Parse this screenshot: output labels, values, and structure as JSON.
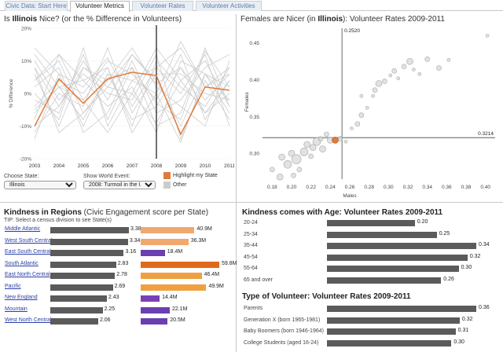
{
  "tabs": [
    {
      "label": "Civic Data: Start Here",
      "active": false
    },
    {
      "label": "Volunteer Metrics",
      "active": true
    },
    {
      "label": "Volunteer Rates",
      "active": false
    },
    {
      "label": "Volunteer Activities",
      "active": false
    }
  ],
  "line_panel": {
    "title_pre": "Is ",
    "title_state": "Illinois",
    "title_post": " Nice? (or the % Difference in Volunteers)",
    "ylabel": "% Difference",
    "event_year": "2008"
  },
  "controls": {
    "state_label": "Choose State:",
    "state_value": "Illinois",
    "event_label": "Show World Event:",
    "event_value": "2008: Turmoil in the US a"
  },
  "legend": {
    "highlight_label": "Highlight my State",
    "highlight_color": "#e07b39",
    "other_label": "Other",
    "other_color": "#cccccc"
  },
  "scatter_panel": {
    "title_pre": "Females are Nicer (in ",
    "title_state": "Illinois",
    "title_post": "):  Volunteer Rates 2009-2011",
    "xlabel": "Males",
    "ylabel": "Females",
    "ref_x_label": "0.2520",
    "ref_y_label": "0.3214"
  },
  "regions_panel": {
    "title_bold": "Kindness in Regions",
    "title_rest": " (Civic Engagement score per State)",
    "tip": "TIP: Select a census division to see State(s)"
  },
  "age_panel": {
    "title": "Kindness comes with Age:  Volunteer Rates 2009-2011"
  },
  "type_panel": {
    "title": "Type of Volunteer:  Volunteer Rates 2009-2011"
  },
  "chart_data": [
    {
      "type": "line",
      "x": [
        "2003",
        "2004",
        "2005",
        "2006",
        "2007",
        "2008",
        "2009",
        "2010",
        "2011"
      ],
      "ylim": [
        -20,
        20
      ],
      "yticks": [
        "20%",
        "10%",
        "0%",
        "-10%",
        "-20%"
      ],
      "highlight_color": "#e07b39",
      "other_color": "#cccccc",
      "series": [
        {
          "values": [
            -10,
            4.5,
            -3,
            4.5,
            6.5,
            5.5,
            -12.5,
            2,
            1
          ]
        }
      ],
      "other_series": [
        [
          -5,
          2,
          -8,
          6,
          4,
          0,
          -15,
          6,
          -2
        ],
        [
          8,
          -4,
          10,
          -2,
          12,
          3,
          8,
          -6,
          4
        ],
        [
          -14,
          6,
          2,
          11,
          -4,
          8,
          14,
          2,
          6
        ],
        [
          4,
          10,
          -6,
          2,
          0,
          -9,
          4,
          10,
          -4
        ],
        [
          -2,
          -6,
          12,
          -8,
          8,
          -3,
          -8,
          13,
          2
        ],
        [
          12,
          2,
          -2,
          8,
          -10,
          10,
          2,
          -4,
          8
        ],
        [
          -8,
          12,
          4,
          -4,
          2,
          -12,
          10,
          6,
          -6
        ],
        [
          6,
          -10,
          8,
          4,
          14,
          2,
          -4,
          -10,
          10
        ],
        [
          -12,
          0,
          -4,
          14,
          -6,
          6,
          6,
          0,
          -2
        ],
        [
          2,
          8,
          -12,
          -6,
          10,
          -6,
          -2,
          8,
          12
        ],
        [
          10,
          -2,
          6,
          0,
          -2,
          12,
          -14,
          4,
          -8
        ],
        [
          -4,
          4,
          0,
          10,
          6,
          -2,
          12,
          -8,
          4
        ],
        [
          0,
          -8,
          14,
          -10,
          4,
          8,
          0,
          12,
          -10
        ],
        [
          14,
          6,
          -10,
          6,
          -8,
          -4,
          8,
          -2,
          6
        ],
        [
          -10,
          -4,
          8,
          2,
          12,
          4,
          -10,
          6,
          2
        ],
        [
          4,
          12,
          -2,
          -12,
          0,
          14,
          4,
          -6,
          0
        ],
        [
          -6,
          2,
          4,
          8,
          -12,
          0,
          16,
          2,
          8
        ],
        [
          8,
          -12,
          -6,
          4,
          8,
          -10,
          -6,
          14,
          -4
        ]
      ]
    },
    {
      "type": "scatter",
      "xlabel": "Males",
      "ylabel": "Females",
      "xlim": [
        0.17,
        0.41
      ],
      "ylim": [
        0.265,
        0.47
      ],
      "xticks": [
        0.18,
        0.2,
        0.22,
        0.24,
        0.26,
        0.28,
        0.3,
        0.32,
        0.34,
        0.36,
        0.38,
        0.4
      ],
      "yticks": [
        0.3,
        0.35,
        0.4,
        0.45
      ],
      "ref_x": 0.252,
      "ref_y": 0.3214,
      "highlight": {
        "x": 0.245,
        "y": 0.318,
        "r": 4
      },
      "points": [
        {
          "x": 0.18,
          "y": 0.278,
          "r": 3
        },
        {
          "x": 0.188,
          "y": 0.268,
          "r": 4
        },
        {
          "x": 0.196,
          "y": 0.285,
          "r": 5
        },
        {
          "x": 0.2,
          "y": 0.3,
          "r": 4
        },
        {
          "x": 0.205,
          "y": 0.292,
          "r": 6
        },
        {
          "x": 0.208,
          "y": 0.278,
          "r": 3
        },
        {
          "x": 0.213,
          "y": 0.302,
          "r": 5
        },
        {
          "x": 0.216,
          "y": 0.312,
          "r": 4
        },
        {
          "x": 0.22,
          "y": 0.296,
          "r": 3
        },
        {
          "x": 0.222,
          "y": 0.308,
          "r": 4
        },
        {
          "x": 0.226,
          "y": 0.316,
          "r": 5
        },
        {
          "x": 0.23,
          "y": 0.32,
          "r": 3
        },
        {
          "x": 0.232,
          "y": 0.306,
          "r": 4
        },
        {
          "x": 0.236,
          "y": 0.326,
          "r": 3
        },
        {
          "x": 0.24,
          "y": 0.318,
          "r": 4
        },
        {
          "x": 0.25,
          "y": 0.32,
          "r": 3
        },
        {
          "x": 0.256,
          "y": 0.316,
          "r": 2
        },
        {
          "x": 0.262,
          "y": 0.334,
          "r": 2
        },
        {
          "x": 0.268,
          "y": 0.34,
          "r": 3
        },
        {
          "x": 0.272,
          "y": 0.352,
          "r": 3
        },
        {
          "x": 0.278,
          "y": 0.362,
          "r": 2
        },
        {
          "x": 0.284,
          "y": 0.378,
          "r": 2
        },
        {
          "x": 0.286,
          "y": 0.386,
          "r": 3
        },
        {
          "x": 0.29,
          "y": 0.395,
          "r": 4
        },
        {
          "x": 0.296,
          "y": 0.398,
          "r": 3
        },
        {
          "x": 0.302,
          "y": 0.406,
          "r": 2
        },
        {
          "x": 0.306,
          "y": 0.412,
          "r": 3
        },
        {
          "x": 0.31,
          "y": 0.402,
          "r": 2
        },
        {
          "x": 0.316,
          "y": 0.418,
          "r": 3
        },
        {
          "x": 0.322,
          "y": 0.425,
          "r": 4
        },
        {
          "x": 0.326,
          "y": 0.414,
          "r": 2
        },
        {
          "x": 0.332,
          "y": 0.408,
          "r": 2
        },
        {
          "x": 0.34,
          "y": 0.428,
          "r": 3
        },
        {
          "x": 0.272,
          "y": 0.378,
          "r": 2
        },
        {
          "x": 0.352,
          "y": 0.416,
          "r": 3
        },
        {
          "x": 0.362,
          "y": 0.427,
          "r": 2
        },
        {
          "x": 0.402,
          "y": 0.46,
          "r": 2
        },
        {
          "x": 0.202,
          "y": 0.27,
          "r": 3
        },
        {
          "x": 0.19,
          "y": 0.295,
          "r": 4
        }
      ]
    },
    {
      "type": "bar",
      "title": "Kindness in Regions",
      "categories": [
        "Middle Atlantic",
        "West South Central",
        "East South Central",
        "South Atlantic",
        "East North Central",
        "Pacific",
        "New England",
        "Mountain",
        "West North Central"
      ],
      "values": [
        3.38,
        3.34,
        3.16,
        2.83,
        2.78,
        2.69,
        2.43,
        2.25,
        2.06
      ],
      "labels": [
        "3.38",
        "3.34",
        "3.16",
        "2.83",
        "2.78",
        "2.69",
        "2.43",
        "2.25",
        "2.06"
      ],
      "population": [
        40.9,
        36.3,
        18.4,
        59.8,
        46.4,
        49.9,
        14.4,
        22.1,
        20.5
      ],
      "population_labels": [
        "40.9M",
        "36.3M",
        "18.4M",
        "59.8M",
        "46.4M",
        "49.9M",
        "14.4M",
        "22.1M",
        "20.5M"
      ],
      "population_colors": [
        "#f0a86e",
        "#f0a86e",
        "#6a3fb0",
        "#e06a1a",
        "#f0a040",
        "#f0a040",
        "#7a40b8",
        "#6a3fb0",
        "#6a3fb0"
      ]
    },
    {
      "type": "bar",
      "title": "Kindness comes with Age:  Volunteer Rates 2009-2011",
      "categories": [
        "20-24",
        "25-34",
        "35-44",
        "45-54",
        "55-64",
        "65 and over"
      ],
      "values": [
        0.2,
        0.25,
        0.34,
        0.32,
        0.3,
        0.26
      ],
      "labels": [
        "0.20",
        "0.25",
        "0.34",
        "0.32",
        "0.30",
        "0.26"
      ],
      "xlim": [
        0,
        0.34
      ]
    },
    {
      "type": "bar",
      "title": "Type of Volunteer:  Volunteer Rates 2009-2011",
      "categories": [
        "Parents",
        "Generation X (born 1965-1981)",
        "Baby Boomers (born 1946-1964)",
        "College Students (aged 16-24)"
      ],
      "values": [
        0.36,
        0.32,
        0.31,
        0.3
      ],
      "labels": [
        "0.36",
        "0.32",
        "0.31",
        "0.30"
      ],
      "xlim": [
        0,
        0.36
      ]
    }
  ]
}
